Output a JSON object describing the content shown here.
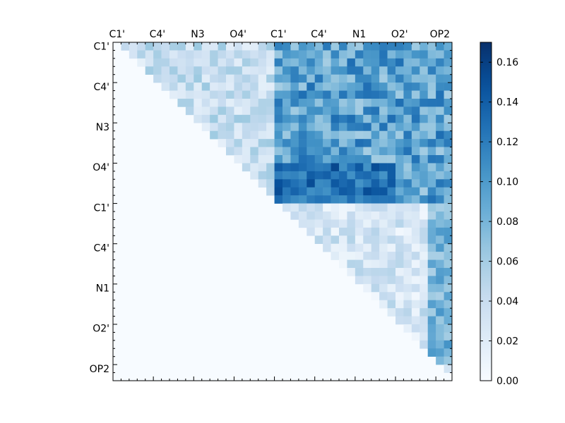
{
  "chart_data": {
    "type": "heatmap",
    "title": "",
    "xlabel": "",
    "ylabel": "",
    "tick_labels": [
      "C1'",
      "C4'",
      "N3",
      "O4'",
      "C1'",
      "C4'",
      "N1",
      "O2'",
      "OP2"
    ],
    "tick_positions": [
      0,
      5,
      10,
      15,
      20,
      25,
      30,
      35,
      40
    ],
    "n": 42,
    "colorbar": {
      "range": [
        0.0,
        0.17
      ],
      "ticks": [
        "0.00",
        "0.02",
        "0.04",
        "0.06",
        "0.08",
        "0.10",
        "0.12",
        "0.14",
        "0.16"
      ],
      "colormap": "Blues"
    },
    "regions": {
      "within_group_1": {
        "rows": [
          0,
          20
        ],
        "cols": [
          0,
          20
        ],
        "typical": 0.04
      },
      "cross_groups": {
        "rows": [
          0,
          20
        ],
        "cols": [
          20,
          42
        ],
        "typical": 0.095
      },
      "within_group_2": {
        "rows": [
          20,
          42
        ],
        "cols": [
          20,
          42
        ],
        "typical": 0.03
      },
      "last_columns": {
        "cols": [
          39,
          42
        ],
        "typical": 0.08
      },
      "peak_rows": {
        "rows": [
          15,
          20
        ],
        "cols": [
          20,
          35
        ],
        "typical": 0.13
      },
      "max_value": 0.17
    }
  }
}
